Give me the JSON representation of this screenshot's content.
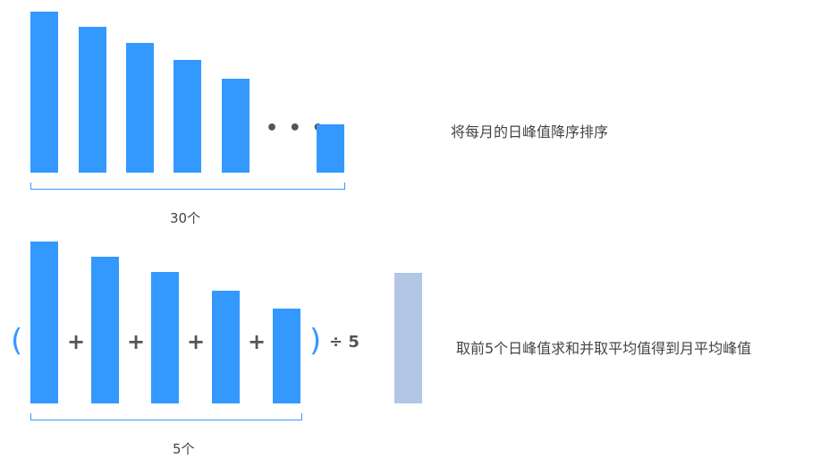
{
  "top": {
    "ellipsis": "• • •",
    "count_label": "30个",
    "caption": "将每月的日峰值降序排序"
  },
  "bottom": {
    "plus": "+",
    "open_paren": "(",
    "close_paren": ")",
    "divide": "÷ 5",
    "count_label": "5个",
    "caption": "取前5个日峰值求和并取平均值得到月平均峰值"
  },
  "colors": {
    "bar": "#3399ff",
    "result_bar": "#b3c6e6"
  }
}
